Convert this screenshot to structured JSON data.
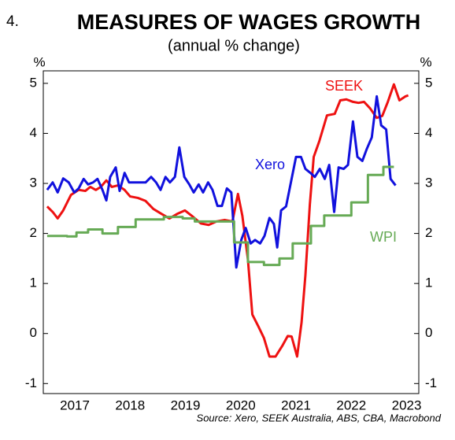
{
  "chart_data": {
    "type": "line",
    "number": "4.",
    "title": "MEASURES OF WAGES GROWTH",
    "subtitle": "(annual % change)",
    "y_unit": "%",
    "y2_unit": "%",
    "source": "Source: Xero, SEEK Australia, ABS, CBA, Macrobond",
    "xlim": [
      2016.43,
      2023.22
    ],
    "xticks": [
      2017,
      2018,
      2019,
      2020,
      2021,
      2022,
      2023
    ],
    "ylim": [
      -1.2,
      5.25
    ],
    "yticks": [
      -1,
      0,
      1,
      2,
      3,
      4,
      5
    ],
    "y2lim": [
      -1.2,
      5.25
    ],
    "y2ticks": [
      -1,
      0,
      1,
      2,
      3,
      4,
      5
    ],
    "series": [
      {
        "name": "SEEK",
        "color": "#ee1111",
        "x": [
          2016.5,
          2016.6,
          2016.69,
          2016.79,
          2016.93,
          2017.07,
          2017.19,
          2017.28,
          2017.38,
          2017.47,
          2017.57,
          2017.67,
          2017.78,
          2017.9,
          2018.0,
          2018.14,
          2018.28,
          2018.42,
          2018.57,
          2018.71,
          2018.85,
          2018.99,
          2019.14,
          2019.28,
          2019.42,
          2019.56,
          2019.71,
          2019.85,
          2019.95,
          2020.03,
          2020.13,
          2020.21,
          2020.32,
          2020.42,
          2020.52,
          2020.63,
          2020.75,
          2020.85,
          2020.92,
          2021.02,
          2021.1,
          2021.17,
          2021.25,
          2021.32,
          2021.42,
          2021.56,
          2021.7,
          2021.8,
          2021.91,
          2022.03,
          2022.13,
          2022.23,
          2022.34,
          2022.46,
          2022.56,
          2022.66,
          2022.77,
          2022.87,
          2022.98,
          2023.03
        ],
        "values": [
          2.54,
          2.43,
          2.3,
          2.46,
          2.77,
          2.87,
          2.85,
          2.93,
          2.87,
          2.93,
          3.06,
          2.93,
          2.96,
          2.87,
          2.74,
          2.71,
          2.65,
          2.49,
          2.39,
          2.3,
          2.39,
          2.46,
          2.33,
          2.2,
          2.17,
          2.24,
          2.27,
          2.24,
          2.79,
          2.35,
          1.48,
          0.38,
          0.14,
          -0.09,
          -0.46,
          -0.46,
          -0.25,
          -0.05,
          -0.06,
          -0.46,
          0.22,
          1.17,
          2.58,
          3.53,
          3.84,
          4.36,
          4.39,
          4.66,
          4.68,
          4.63,
          4.61,
          4.63,
          4.5,
          4.31,
          4.35,
          4.63,
          4.98,
          4.66,
          4.74,
          4.76
        ]
      },
      {
        "name": "Xero",
        "color": "#1111dd",
        "x": [
          2016.5,
          2016.6,
          2016.69,
          2016.79,
          2016.89,
          2016.99,
          2017.07,
          2017.16,
          2017.24,
          2017.33,
          2017.41,
          2017.5,
          2017.57,
          2017.64,
          2017.74,
          2017.81,
          2017.9,
          2017.98,
          2018.14,
          2018.28,
          2018.38,
          2018.47,
          2018.55,
          2018.64,
          2018.72,
          2018.81,
          2018.89,
          2018.98,
          2019.07,
          2019.15,
          2019.24,
          2019.32,
          2019.41,
          2019.49,
          2019.58,
          2019.66,
          2019.75,
          2019.83,
          2019.92,
          2020.01,
          2020.09,
          2020.18,
          2020.26,
          2020.35,
          2020.43,
          2020.52,
          2020.6,
          2020.66,
          2020.73,
          2020.82,
          2020.9,
          2021.0,
          2021.09,
          2021.17,
          2021.26,
          2021.34,
          2021.43,
          2021.52,
          2021.6,
          2021.69,
          2021.77,
          2021.86,
          2021.94,
          2022.03,
          2022.11,
          2022.2,
          2022.28,
          2022.37,
          2022.46,
          2022.54,
          2022.63,
          2022.71,
          2022.8
        ],
        "values": [
          2.87,
          3.02,
          2.82,
          3.1,
          3.02,
          2.82,
          2.9,
          3.09,
          2.98,
          3.02,
          3.09,
          2.87,
          2.66,
          3.13,
          3.32,
          2.85,
          3.21,
          3.02,
          3.02,
          3.02,
          3.13,
          3.02,
          2.87,
          3.13,
          3.02,
          3.13,
          3.72,
          3.13,
          2.98,
          2.82,
          2.98,
          2.82,
          3.02,
          2.87,
          2.55,
          2.55,
          2.9,
          2.82,
          1.32,
          1.87,
          2.11,
          1.8,
          1.87,
          1.8,
          1.95,
          2.31,
          2.19,
          1.72,
          2.46,
          2.54,
          2.98,
          3.53,
          3.53,
          3.29,
          3.21,
          3.13,
          3.29,
          3.09,
          3.37,
          2.43,
          3.32,
          3.29,
          3.37,
          4.24,
          3.53,
          3.45,
          3.69,
          3.92,
          4.74,
          4.16,
          4.08,
          3.09,
          2.96
        ]
      },
      {
        "name": "WPI",
        "color": "#66aa55",
        "step": true,
        "x": [
          2016.5,
          2016.86,
          2017.03,
          2017.24,
          2017.5,
          2017.78,
          2018.1,
          2018.61,
          2018.95,
          2019.17,
          2019.88,
          2020.13,
          2020.42,
          2020.7,
          2020.94,
          2021.27,
          2021.51,
          2022.0,
          2022.3,
          2022.58,
          2022.77
        ],
        "values": [
          1.95,
          1.94,
          2.02,
          2.08,
          2.0,
          2.13,
          2.28,
          2.33,
          2.3,
          2.24,
          1.82,
          1.43,
          1.37,
          1.5,
          1.8,
          2.15,
          2.36,
          2.62,
          3.17,
          3.33,
          3.33
        ]
      }
    ]
  }
}
